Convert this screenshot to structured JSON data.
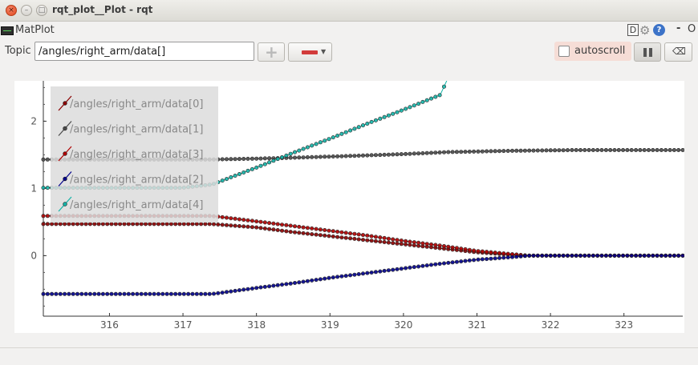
{
  "window": {
    "title": "rqt_plot__Plot - rqt"
  },
  "plugin": {
    "name": "MatPlot",
    "header_d": "D",
    "help": "?",
    "dash": "-",
    "o": "O"
  },
  "toolbar": {
    "topic_label": "Topic",
    "topic_value": "/angles/right_arm/data[]",
    "autoscroll_label": "autoscroll",
    "autoscroll_checked": false
  },
  "icons": {
    "close": "close-icon",
    "minimize": "minimize-icon",
    "maximize": "maximize-icon",
    "plugin": "matplot-icon",
    "gear": "gear-icon",
    "help": "help-icon",
    "add": "plus-icon",
    "remove": "remove-icon",
    "pause": "pause-icon",
    "clear": "clear-icon"
  },
  "chart_data": {
    "type": "line",
    "title": "",
    "xlabel": "",
    "ylabel": "",
    "xlim": [
      315.1,
      323.8
    ],
    "ylim": [
      -0.9,
      2.6
    ],
    "xticks": [
      316,
      317,
      318,
      319,
      320,
      321,
      322,
      323
    ],
    "yticks": [
      0,
      1,
      2
    ],
    "grid": false,
    "legend_position": "top-left",
    "marker": "circle",
    "series": [
      {
        "name": "/angles/right_arm/data[0]",
        "color": "#8b0000",
        "points": [
          [
            315.1,
            0.47
          ],
          [
            317.4,
            0.47
          ],
          [
            318.0,
            0.42
          ],
          [
            318.5,
            0.35
          ],
          [
            319.0,
            0.29
          ],
          [
            319.5,
            0.23
          ],
          [
            320.0,
            0.17
          ],
          [
            320.5,
            0.11
          ],
          [
            321.0,
            0.05
          ],
          [
            321.6,
            0.0
          ],
          [
            323.8,
            0.0
          ]
        ]
      },
      {
        "name": "/angles/right_arm/data[1]",
        "color": "#4a4a4a",
        "points": [
          [
            315.1,
            1.43
          ],
          [
            317.4,
            1.43
          ],
          [
            318.3,
            1.45
          ],
          [
            319.2,
            1.48
          ],
          [
            320.0,
            1.51
          ],
          [
            320.6,
            1.54
          ],
          [
            321.5,
            1.56
          ],
          [
            322.3,
            1.57
          ],
          [
            323.8,
            1.57
          ]
        ]
      },
      {
        "name": "/angles/right_arm/data[3]",
        "color": "#b00000",
        "points": [
          [
            315.1,
            0.59
          ],
          [
            317.4,
            0.59
          ],
          [
            318.0,
            0.51
          ],
          [
            318.5,
            0.44
          ],
          [
            319.0,
            0.37
          ],
          [
            319.5,
            0.3
          ],
          [
            320.0,
            0.22
          ],
          [
            320.5,
            0.15
          ],
          [
            321.0,
            0.07
          ],
          [
            321.5,
            0.02
          ],
          [
            321.7,
            0.0
          ],
          [
            323.8,
            0.0
          ]
        ]
      },
      {
        "name": "/angles/right_arm/data[2]",
        "color": "#00008b",
        "points": [
          [
            315.1,
            -0.57
          ],
          [
            317.4,
            -0.57
          ],
          [
            318.0,
            -0.48
          ],
          [
            318.5,
            -0.41
          ],
          [
            319.0,
            -0.33
          ],
          [
            319.5,
            -0.26
          ],
          [
            320.0,
            -0.19
          ],
          [
            320.5,
            -0.12
          ],
          [
            321.0,
            -0.06
          ],
          [
            321.5,
            -0.02
          ],
          [
            321.7,
            0.0
          ],
          [
            323.8,
            0.0
          ]
        ]
      },
      {
        "name": "/angles/right_arm/data[4]",
        "color": "#14b4a8",
        "points": [
          [
            315.1,
            1.01
          ],
          [
            317.0,
            1.01
          ],
          [
            317.4,
            1.06
          ],
          [
            318.0,
            1.31
          ],
          [
            318.5,
            1.53
          ],
          [
            319.0,
            1.74
          ],
          [
            319.5,
            1.96
          ],
          [
            320.0,
            2.17
          ],
          [
            320.5,
            2.39
          ],
          [
            320.6,
            2.63
          ],
          [
            323.8,
            2.63
          ]
        ]
      }
    ]
  }
}
